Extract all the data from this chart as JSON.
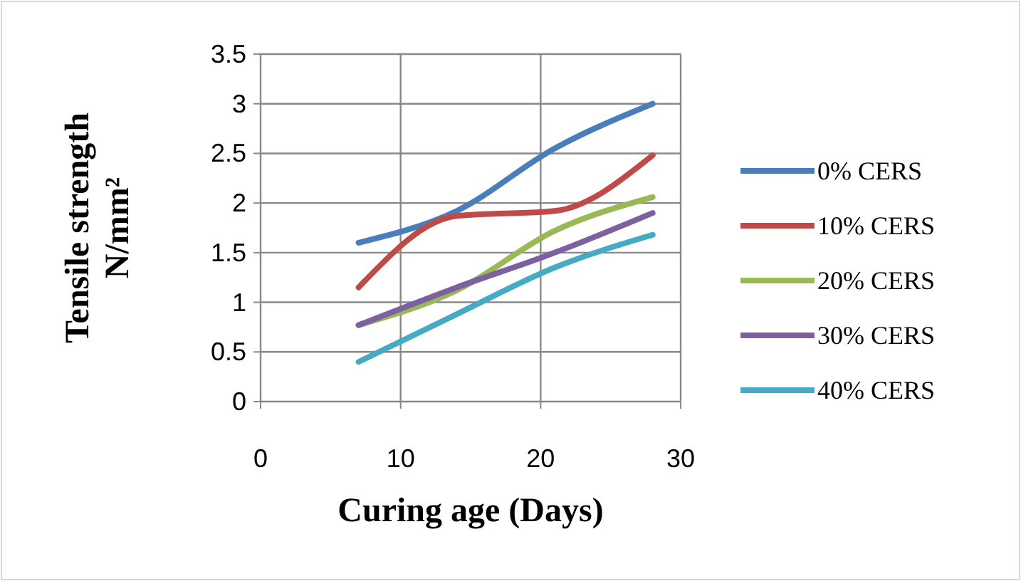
{
  "chart_data": {
    "type": "line",
    "xlabel": "Curing age (Days)",
    "ylabel": "Tensile strength N/mm²",
    "x": [
      7,
      14,
      21,
      28
    ],
    "xlim": [
      0,
      30
    ],
    "xticks": [
      0,
      10,
      20,
      30
    ],
    "ylim": [
      0,
      3.5
    ],
    "yticks": [
      0,
      0.5,
      1,
      1.5,
      2,
      2.5,
      3,
      3.5
    ],
    "grid": true,
    "legend": "right",
    "marker": "none",
    "series": [
      {
        "name": "0% CERS",
        "color": "#4a7ebb",
        "values": [
          1.6,
          1.92,
          2.55,
          3.0
        ]
      },
      {
        "name": "10% CERS",
        "color": "#be4b48",
        "values": [
          1.15,
          1.87,
          1.92,
          2.48
        ]
      },
      {
        "name": "20% CERS",
        "color": "#98b954",
        "values": [
          0.77,
          1.12,
          1.72,
          2.06
        ]
      },
      {
        "name": "30% CERS",
        "color": "#7d60a0",
        "values": [
          0.77,
          1.15,
          1.5,
          1.9
        ]
      },
      {
        "name": "40% CERS",
        "color": "#46aac5",
        "values": [
          0.4,
          0.88,
          1.35,
          1.68
        ]
      }
    ]
  }
}
